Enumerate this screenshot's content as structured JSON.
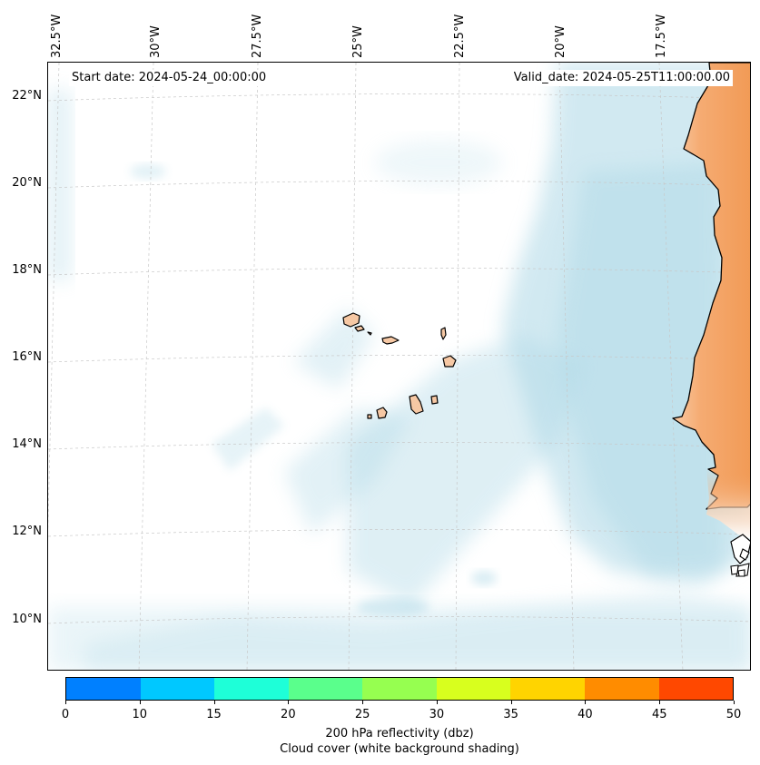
{
  "map": {
    "start_date": "Start date: 2024-05-24_00:00:00",
    "valid_date": "Valid_date: 2024-05-25T11:00:00.00",
    "lat_labels": [
      "22°N",
      "20°N",
      "18°N",
      "16°N",
      "14°N",
      "12°N",
      "10°N"
    ],
    "lon_labels": [
      "32.5°W",
      "30°W",
      "27.5°W",
      "25°W",
      "22.5°W",
      "20°W",
      "17.5°W"
    ],
    "colors": {
      "land": "#f4a15e",
      "land_coast": "#f9c9a3",
      "island": "#f6c8a4",
      "cloud": "#add8e6",
      "coastline": "#000000"
    }
  },
  "colorbar": {
    "ticks": [
      "0",
      "10",
      "15",
      "20",
      "25",
      "30",
      "35",
      "40",
      "45",
      "50"
    ],
    "colors": [
      "#0080ff",
      "#00c8ff",
      "#1effd8",
      "#5aff8c",
      "#96ff50",
      "#d8ff1e",
      "#ffd400",
      "#ff8c00",
      "#ff4800"
    ],
    "label": "200 hPa reflectivity (dbz)",
    "sublabel": "Cloud cover (white background shading)"
  }
}
